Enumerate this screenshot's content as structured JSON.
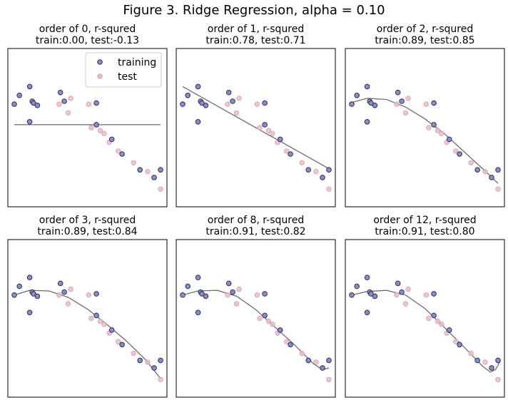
{
  "figure": {
    "title": "Figure 3. Ridge Regression, alpha = 0.10"
  },
  "legend": {
    "training": "training",
    "test": "test"
  },
  "colors": {
    "training_fill": "#8a8ec0",
    "training_edge": "#2a2f66",
    "test_fill": "#e7bcc6",
    "test_edge": "#d6a4b1",
    "fit_line": "#6e6e6e",
    "frame": "#000000"
  },
  "chart_data": [
    {
      "type": "scatter",
      "title_line1": "order of 0, r-squred",
      "title_line2": "train:0.00, test:-0.13",
      "xlim": [
        -2.2,
        10.2
      ],
      "ylim": [
        -1.45,
        1.25
      ],
      "training": [
        [
          -1.7,
          0.3
        ],
        [
          -1.3,
          0.45
        ],
        [
          -0.5,
          0.6
        ],
        [
          -0.3,
          0.35
        ],
        [
          -0.2,
          0.32
        ],
        [
          0.1,
          0.28
        ],
        [
          1.9,
          0.5
        ],
        [
          2.2,
          0.35
        ],
        [
          -0.5,
          0.0
        ],
        [
          4.7,
          0.32
        ],
        [
          4.7,
          -0.05
        ],
        [
          5.9,
          -0.3
        ],
        [
          6.7,
          -0.55
        ],
        [
          8.1,
          -0.82
        ],
        [
          9.2,
          -0.95
        ],
        [
          9.7,
          -0.82
        ]
      ],
      "test": [
        [
          1.8,
          0.3
        ],
        [
          2.5,
          0.15
        ],
        [
          2.7,
          0.4
        ],
        [
          4.1,
          0.3
        ],
        [
          4.3,
          -0.1
        ],
        [
          5.0,
          -0.15
        ],
        [
          5.3,
          -0.2
        ],
        [
          5.7,
          -0.35
        ],
        [
          6.4,
          -0.5
        ],
        [
          7.6,
          -0.7
        ],
        [
          8.7,
          -0.85
        ],
        [
          9.7,
          -1.15
        ]
      ],
      "fit": [
        [
          -1.7,
          -0.05
        ],
        [
          9.7,
          -0.05
        ]
      ]
    },
    {
      "type": "scatter",
      "title_line1": "order of 1, r-squred",
      "title_line2": "train:0.78, test:0.71",
      "xlim": [
        -2.2,
        10.2
      ],
      "ylim": [
        -1.45,
        1.25
      ],
      "training": [
        [
          -1.7,
          0.3
        ],
        [
          -1.3,
          0.45
        ],
        [
          -0.5,
          0.6
        ],
        [
          -0.3,
          0.35
        ],
        [
          -0.2,
          0.32
        ],
        [
          0.1,
          0.28
        ],
        [
          1.9,
          0.5
        ],
        [
          2.2,
          0.35
        ],
        [
          -0.5,
          0.0
        ],
        [
          4.7,
          0.32
        ],
        [
          4.7,
          -0.05
        ],
        [
          5.9,
          -0.3
        ],
        [
          6.7,
          -0.55
        ],
        [
          8.1,
          -0.82
        ],
        [
          9.2,
          -0.95
        ],
        [
          9.7,
          -0.82
        ]
      ],
      "test": [
        [
          1.8,
          0.3
        ],
        [
          2.5,
          0.15
        ],
        [
          2.7,
          0.4
        ],
        [
          4.1,
          0.3
        ],
        [
          4.3,
          -0.1
        ],
        [
          5.0,
          -0.15
        ],
        [
          5.3,
          -0.2
        ],
        [
          5.7,
          -0.35
        ],
        [
          6.4,
          -0.5
        ],
        [
          7.6,
          -0.7
        ],
        [
          8.7,
          -0.85
        ],
        [
          9.7,
          -1.15
        ]
      ],
      "fit": [
        [
          -1.7,
          0.6
        ],
        [
          9.7,
          -0.8
        ]
      ]
    },
    {
      "type": "scatter",
      "title_line1": "order of 2, r-squred",
      "title_line2": "train:0.89, test:0.85",
      "xlim": [
        -2.2,
        10.2
      ],
      "ylim": [
        -1.45,
        1.25
      ],
      "training": [
        [
          -1.7,
          0.3
        ],
        [
          -1.3,
          0.45
        ],
        [
          -0.5,
          0.6
        ],
        [
          -0.3,
          0.35
        ],
        [
          -0.2,
          0.32
        ],
        [
          0.1,
          0.28
        ],
        [
          1.9,
          0.5
        ],
        [
          2.2,
          0.35
        ],
        [
          -0.5,
          0.0
        ],
        [
          4.7,
          0.32
        ],
        [
          4.7,
          -0.05
        ],
        [
          5.9,
          -0.3
        ],
        [
          6.7,
          -0.55
        ],
        [
          8.1,
          -0.82
        ],
        [
          9.2,
          -0.95
        ],
        [
          9.7,
          -0.82
        ]
      ],
      "test": [
        [
          1.8,
          0.3
        ],
        [
          2.5,
          0.15
        ],
        [
          2.7,
          0.4
        ],
        [
          4.1,
          0.3
        ],
        [
          4.3,
          -0.1
        ],
        [
          5.0,
          -0.15
        ],
        [
          5.3,
          -0.2
        ],
        [
          5.7,
          -0.35
        ],
        [
          6.4,
          -0.5
        ],
        [
          7.6,
          -0.7
        ],
        [
          8.7,
          -0.85
        ],
        [
          9.7,
          -1.15
        ]
      ],
      "fit": [
        [
          -1.7,
          0.33
        ],
        [
          -0.5,
          0.4
        ],
        [
          1.0,
          0.38
        ],
        [
          2.5,
          0.25
        ],
        [
          4.0,
          0.05
        ],
        [
          5.5,
          -0.2
        ],
        [
          7.0,
          -0.5
        ],
        [
          8.5,
          -0.8
        ],
        [
          9.7,
          -1.05
        ]
      ]
    },
    {
      "type": "scatter",
      "title_line1": "order of 3, r-squred",
      "title_line2": "train:0.89, test:0.84",
      "xlim": [
        -2.2,
        10.2
      ],
      "ylim": [
        -1.45,
        1.25
      ],
      "training": [
        [
          -1.7,
          0.3
        ],
        [
          -1.3,
          0.45
        ],
        [
          -0.5,
          0.6
        ],
        [
          -0.3,
          0.35
        ],
        [
          -0.2,
          0.32
        ],
        [
          0.1,
          0.28
        ],
        [
          1.9,
          0.5
        ],
        [
          2.2,
          0.35
        ],
        [
          -0.5,
          0.0
        ],
        [
          4.7,
          0.32
        ],
        [
          4.7,
          -0.05
        ],
        [
          5.9,
          -0.3
        ],
        [
          6.7,
          -0.55
        ],
        [
          8.1,
          -0.82
        ],
        [
          9.2,
          -0.95
        ],
        [
          9.7,
          -0.82
        ]
      ],
      "test": [
        [
          1.8,
          0.3
        ],
        [
          2.5,
          0.15
        ],
        [
          2.7,
          0.4
        ],
        [
          4.1,
          0.3
        ],
        [
          4.3,
          -0.1
        ],
        [
          5.0,
          -0.15
        ],
        [
          5.3,
          -0.2
        ],
        [
          5.7,
          -0.35
        ],
        [
          6.4,
          -0.5
        ],
        [
          7.6,
          -0.7
        ],
        [
          8.7,
          -0.85
        ],
        [
          9.7,
          -1.15
        ]
      ],
      "fit": [
        [
          -1.7,
          0.3
        ],
        [
          -0.5,
          0.38
        ],
        [
          1.0,
          0.37
        ],
        [
          2.5,
          0.26
        ],
        [
          4.0,
          0.06
        ],
        [
          5.5,
          -0.2
        ],
        [
          7.0,
          -0.48
        ],
        [
          8.5,
          -0.8
        ],
        [
          9.7,
          -1.13
        ]
      ]
    },
    {
      "type": "scatter",
      "title_line1": "order of 8, r-squred",
      "title_line2": "train:0.91, test:0.82",
      "xlim": [
        -2.2,
        10.2
      ],
      "ylim": [
        -1.45,
        1.25
      ],
      "training": [
        [
          -1.7,
          0.3
        ],
        [
          -1.3,
          0.45
        ],
        [
          -0.5,
          0.6
        ],
        [
          -0.3,
          0.35
        ],
        [
          -0.2,
          0.32
        ],
        [
          0.1,
          0.28
        ],
        [
          1.9,
          0.5
        ],
        [
          2.2,
          0.35
        ],
        [
          -0.5,
          0.0
        ],
        [
          4.7,
          0.32
        ],
        [
          4.7,
          -0.05
        ],
        [
          5.9,
          -0.3
        ],
        [
          6.7,
          -0.55
        ],
        [
          8.1,
          -0.82
        ],
        [
          9.2,
          -0.95
        ],
        [
          9.7,
          -0.82
        ]
      ],
      "test": [
        [
          1.8,
          0.3
        ],
        [
          2.5,
          0.15
        ],
        [
          2.7,
          0.4
        ],
        [
          4.1,
          0.3
        ],
        [
          4.3,
          -0.1
        ],
        [
          5.0,
          -0.15
        ],
        [
          5.3,
          -0.2
        ],
        [
          5.7,
          -0.35
        ],
        [
          6.4,
          -0.5
        ],
        [
          7.6,
          -0.7
        ],
        [
          8.7,
          -0.85
        ],
        [
          9.7,
          -1.15
        ]
      ],
      "fit": [
        [
          -1.7,
          0.3
        ],
        [
          -0.5,
          0.37
        ],
        [
          1.0,
          0.38
        ],
        [
          2.5,
          0.28
        ],
        [
          4.0,
          0.05
        ],
        [
          5.5,
          -0.25
        ],
        [
          7.0,
          -0.55
        ],
        [
          8.5,
          -0.88
        ],
        [
          9.2,
          -0.98
        ],
        [
          9.7,
          -0.95
        ]
      ]
    },
    {
      "type": "scatter",
      "title_line1": "order of 12, r-squred",
      "title_line2": "train:0.91, test:0.80",
      "xlim": [
        -2.2,
        10.2
      ],
      "ylim": [
        -1.45,
        1.25
      ],
      "training": [
        [
          -1.7,
          0.3
        ],
        [
          -1.3,
          0.45
        ],
        [
          -0.5,
          0.6
        ],
        [
          -0.3,
          0.35
        ],
        [
          -0.2,
          0.32
        ],
        [
          0.1,
          0.28
        ],
        [
          1.9,
          0.5
        ],
        [
          2.2,
          0.35
        ],
        [
          -0.5,
          0.0
        ],
        [
          4.7,
          0.32
        ],
        [
          4.7,
          -0.05
        ],
        [
          5.9,
          -0.3
        ],
        [
          6.7,
          -0.55
        ],
        [
          8.1,
          -0.82
        ],
        [
          9.2,
          -0.95
        ],
        [
          9.7,
          -0.82
        ]
      ],
      "test": [
        [
          1.8,
          0.3
        ],
        [
          2.5,
          0.15
        ],
        [
          2.7,
          0.4
        ],
        [
          4.1,
          0.3
        ],
        [
          4.3,
          -0.1
        ],
        [
          5.0,
          -0.15
        ],
        [
          5.3,
          -0.2
        ],
        [
          5.7,
          -0.35
        ],
        [
          6.4,
          -0.5
        ],
        [
          7.6,
          -0.7
        ],
        [
          8.7,
          -0.85
        ],
        [
          9.7,
          -1.15
        ]
      ],
      "fit": [
        [
          -1.7,
          0.3
        ],
        [
          -0.5,
          0.36
        ],
        [
          1.0,
          0.38
        ],
        [
          2.5,
          0.3
        ],
        [
          4.0,
          0.07
        ],
        [
          5.5,
          -0.25
        ],
        [
          7.0,
          -0.58
        ],
        [
          8.5,
          -0.92
        ],
        [
          9.1,
          -1.02
        ],
        [
          9.5,
          -0.98
        ],
        [
          9.9,
          -0.82
        ]
      ]
    }
  ]
}
